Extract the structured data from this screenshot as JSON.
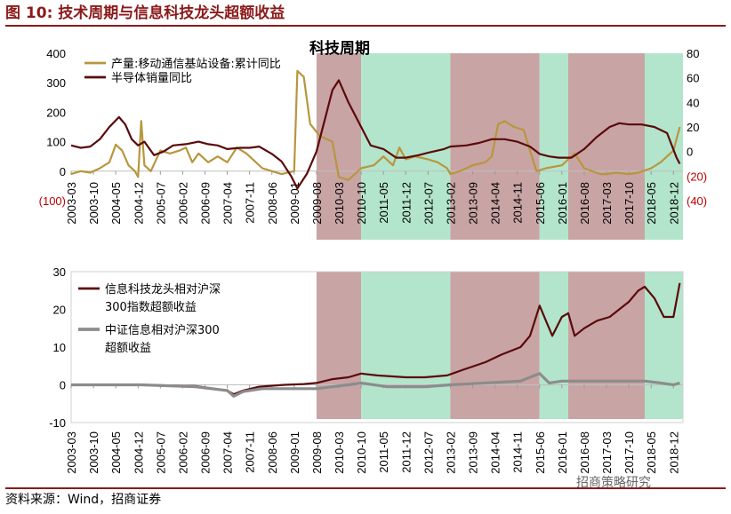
{
  "figure_title": "图 10:  技术周期与信息科技龙头超额收益",
  "source": "资料来源：Wind，招商证券",
  "watermark": "招商策略研究",
  "colors": {
    "title": "#8B1A1A",
    "production": "#B8963E",
    "semi": "#5A0A0A",
    "leader": "#5A0A0A",
    "index": "#8C8C8C",
    "red_shade": "#C9A4A4",
    "green_shade": "#B3E5CC"
  },
  "chart_data": [
    {
      "type": "line",
      "title": "科技周期",
      "x_tick_labels": [
        "2003-03",
        "2003-10",
        "2004-05",
        "2004-12",
        "2005-07",
        "2006-02",
        "2006-09",
        "2007-04",
        "2007-11",
        "2008-06",
        "2009-01",
        "2009-08",
        "2010-03",
        "2010-10",
        "2011-05",
        "2011-12",
        "2012-07",
        "2013-02",
        "2013-09",
        "2014-04",
        "2014-11",
        "2015-06",
        "2016-01",
        "2016-08",
        "2017-03",
        "2017-10",
        "2018-05",
        "2018-12"
      ],
      "x_range": [
        "2003-03",
        "2019-03"
      ],
      "y_left": {
        "range": [
          -100,
          400
        ],
        "tick_labels": [
          "(100)",
          "0",
          "100",
          "200",
          "300",
          "400"
        ],
        "ticks": [
          -100,
          0,
          100,
          200,
          300,
          400
        ]
      },
      "y_right": {
        "range": [
          -40,
          80
        ],
        "tick_labels": [
          "(40)",
          "(20)",
          "0",
          "20",
          "40",
          "60",
          "80"
        ],
        "ticks": [
          -40,
          -20,
          0,
          20,
          40,
          60,
          80
        ]
      },
      "shaded_periods": [
        {
          "start": "2009-08",
          "end": "2010-10",
          "phase": "red"
        },
        {
          "start": "2010-10",
          "end": "2013-02",
          "phase": "green"
        },
        {
          "start": "2013-02",
          "end": "2015-06",
          "phase": "red"
        },
        {
          "start": "2015-06",
          "end": "2016-03",
          "phase": "green"
        },
        {
          "start": "2016-03",
          "end": "2018-03",
          "phase": "red"
        },
        {
          "start": "2018-03",
          "end": "2019-03",
          "phase": "green"
        }
      ],
      "series": [
        {
          "name": "产量:移动通信基站设备:累计同比",
          "axis": "left",
          "color_key": "production",
          "points": [
            [
              "2003-03",
              -10
            ],
            [
              "2003-06",
              0
            ],
            [
              "2003-09",
              -5
            ],
            [
              "2003-12",
              10
            ],
            [
              "2004-03",
              30
            ],
            [
              "2004-05",
              90
            ],
            [
              "2004-07",
              70
            ],
            [
              "2004-09",
              20
            ],
            [
              "2004-11",
              0
            ],
            [
              "2004-12",
              -20
            ],
            [
              "2005-01",
              170
            ],
            [
              "2005-02",
              20
            ],
            [
              "2005-04",
              0
            ],
            [
              "2005-07",
              70
            ],
            [
              "2005-10",
              60
            ],
            [
              "2006-01",
              70
            ],
            [
              "2006-03",
              80
            ],
            [
              "2006-05",
              30
            ],
            [
              "2006-07",
              60
            ],
            [
              "2006-10",
              30
            ],
            [
              "2007-01",
              50
            ],
            [
              "2007-04",
              30
            ],
            [
              "2007-07",
              80
            ],
            [
              "2007-10",
              60
            ],
            [
              "2008-01",
              30
            ],
            [
              "2008-03",
              10
            ],
            [
              "2008-06",
              0
            ],
            [
              "2008-09",
              -10
            ],
            [
              "2009-01",
              0
            ],
            [
              "2009-02",
              340
            ],
            [
              "2009-04",
              320
            ],
            [
              "2009-06",
              160
            ],
            [
              "2009-09",
              120
            ],
            [
              "2010-01",
              100
            ],
            [
              "2010-03",
              -20
            ],
            [
              "2010-06",
              -30
            ],
            [
              "2010-10",
              10
            ],
            [
              "2011-02",
              20
            ],
            [
              "2011-05",
              50
            ],
            [
              "2011-08",
              20
            ],
            [
              "2011-10",
              80
            ],
            [
              "2011-12",
              40
            ],
            [
              "2012-03",
              50
            ],
            [
              "2012-07",
              40
            ],
            [
              "2012-10",
              30
            ],
            [
              "2013-01",
              10
            ],
            [
              "2013-02",
              -10
            ],
            [
              "2013-05",
              0
            ],
            [
              "2013-09",
              20
            ],
            [
              "2014-01",
              30
            ],
            [
              "2014-03",
              50
            ],
            [
              "2014-05",
              160
            ],
            [
              "2014-07",
              170
            ],
            [
              "2014-10",
              150
            ],
            [
              "2015-01",
              140
            ],
            [
              "2015-03",
              70
            ],
            [
              "2015-05",
              0
            ],
            [
              "2015-08",
              10
            ],
            [
              "2016-01",
              20
            ],
            [
              "2016-05",
              60
            ],
            [
              "2016-08",
              10
            ],
            [
              "2017-01",
              -10
            ],
            [
              "2017-03",
              -10
            ],
            [
              "2017-06",
              -5
            ],
            [
              "2017-10",
              -10
            ],
            [
              "2018-01",
              -5
            ],
            [
              "2018-05",
              10
            ],
            [
              "2018-08",
              30
            ],
            [
              "2018-12",
              70
            ],
            [
              "2019-02",
              150
            ]
          ]
        },
        {
          "name": "半导体销量同比",
          "axis": "right",
          "color_key": "semi",
          "points": [
            [
              "2003-03",
              5
            ],
            [
              "2003-06",
              3
            ],
            [
              "2003-09",
              4
            ],
            [
              "2003-12",
              10
            ],
            [
              "2004-03",
              20
            ],
            [
              "2004-06",
              28
            ],
            [
              "2004-08",
              22
            ],
            [
              "2004-10",
              10
            ],
            [
              "2004-12",
              5
            ],
            [
              "2005-02",
              8
            ],
            [
              "2005-05",
              -3
            ],
            [
              "2005-08",
              0
            ],
            [
              "2005-11",
              5
            ],
            [
              "2006-03",
              6
            ],
            [
              "2006-07",
              8
            ],
            [
              "2006-10",
              6
            ],
            [
              "2007-01",
              5
            ],
            [
              "2007-04",
              2
            ],
            [
              "2007-08",
              3
            ],
            [
              "2007-11",
              3
            ],
            [
              "2008-02",
              4
            ],
            [
              "2008-06",
              -2
            ],
            [
              "2008-09",
              -8
            ],
            [
              "2008-12",
              -20
            ],
            [
              "2009-02",
              -30
            ],
            [
              "2009-05",
              -18
            ],
            [
              "2009-08",
              0
            ],
            [
              "2009-11",
              30
            ],
            [
              "2010-01",
              50
            ],
            [
              "2010-03",
              58
            ],
            [
              "2010-06",
              40
            ],
            [
              "2010-10",
              20
            ],
            [
              "2011-01",
              5
            ],
            [
              "2011-05",
              2
            ],
            [
              "2011-09",
              -5
            ],
            [
              "2011-12",
              -5
            ],
            [
              "2012-04",
              -3
            ],
            [
              "2012-07",
              -1
            ],
            [
              "2012-12",
              2
            ],
            [
              "2013-02",
              4
            ],
            [
              "2013-07",
              5
            ],
            [
              "2013-11",
              7
            ],
            [
              "2014-03",
              10
            ],
            [
              "2014-07",
              10
            ],
            [
              "2014-11",
              8
            ],
            [
              "2015-03",
              4
            ],
            [
              "2015-06",
              -2
            ],
            [
              "2015-09",
              -4
            ],
            [
              "2015-12",
              -5
            ],
            [
              "2016-04",
              -5
            ],
            [
              "2016-08",
              2
            ],
            [
              "2016-12",
              12
            ],
            [
              "2017-04",
              20
            ],
            [
              "2017-07",
              23
            ],
            [
              "2017-10",
              22
            ],
            [
              "2018-02",
              22
            ],
            [
              "2018-06",
              20
            ],
            [
              "2018-10",
              15
            ],
            [
              "2019-01",
              -5
            ],
            [
              "2019-02",
              -10
            ]
          ]
        }
      ]
    },
    {
      "type": "line",
      "title": "",
      "x_tick_labels": [
        "2003-03",
        "2003-10",
        "2004-05",
        "2004-12",
        "2005-07",
        "2006-02",
        "2006-09",
        "2007-04",
        "2007-11",
        "2008-06",
        "2009-01",
        "2009-08",
        "2010-03",
        "2010-10",
        "2011-05",
        "2011-12",
        "2012-07",
        "2013-02",
        "2013-09",
        "2014-04",
        "2014-11",
        "2015-06",
        "2016-01",
        "2016-08",
        "2017-03",
        "2017-10",
        "2018-05",
        "2018-12"
      ],
      "x_range": [
        "2003-03",
        "2019-03"
      ],
      "y": {
        "range": [
          -10,
          30
        ],
        "tick_labels": [
          "-10",
          "0",
          "10",
          "20",
          "30"
        ],
        "ticks": [
          -10,
          0,
          10,
          20,
          30
        ]
      },
      "shaded_periods": [
        {
          "start": "2009-08",
          "end": "2010-10",
          "phase": "red"
        },
        {
          "start": "2010-10",
          "end": "2013-02",
          "phase": "green"
        },
        {
          "start": "2013-02",
          "end": "2015-06",
          "phase": "red"
        },
        {
          "start": "2015-06",
          "end": "2016-03",
          "phase": "green"
        },
        {
          "start": "2016-03",
          "end": "2018-03",
          "phase": "red"
        },
        {
          "start": "2018-03",
          "end": "2019-03",
          "phase": "green"
        }
      ],
      "series": [
        {
          "name": "信息科技龙头相对沪深300指数超额收益",
          "legend_lines": [
            "信息科技龙头相对沪深",
            "300指数超额收益"
          ],
          "color_key": "leader",
          "points": [
            [
              "2003-03",
              0
            ],
            [
              "2005-01",
              0
            ],
            [
              "2006-06",
              -0.3
            ],
            [
              "2007-04",
              -1.5
            ],
            [
              "2007-06",
              -2.5
            ],
            [
              "2007-09",
              -1.5
            ],
            [
              "2008-02",
              -0.5
            ],
            [
              "2008-10",
              0
            ],
            [
              "2009-04",
              0.2
            ],
            [
              "2009-08",
              0.5
            ],
            [
              "2010-01",
              1.5
            ],
            [
              "2010-06",
              2
            ],
            [
              "2010-10",
              3
            ],
            [
              "2011-03",
              2.5
            ],
            [
              "2011-12",
              2
            ],
            [
              "2012-06",
              2
            ],
            [
              "2013-01",
              2.5
            ],
            [
              "2013-06",
              4
            ],
            [
              "2014-01",
              6
            ],
            [
              "2014-06",
              8
            ],
            [
              "2014-12",
              10
            ],
            [
              "2015-03",
              13
            ],
            [
              "2015-06",
              21
            ],
            [
              "2015-08",
              17
            ],
            [
              "2015-10",
              13
            ],
            [
              "2016-01",
              18
            ],
            [
              "2016-03",
              19
            ],
            [
              "2016-05",
              13
            ],
            [
              "2016-08",
              15
            ],
            [
              "2016-12",
              17
            ],
            [
              "2017-04",
              18
            ],
            [
              "2017-10",
              22
            ],
            [
              "2018-01",
              25
            ],
            [
              "2018-03",
              26
            ],
            [
              "2018-06",
              23
            ],
            [
              "2018-09",
              18
            ],
            [
              "2018-12",
              18
            ],
            [
              "2019-02",
              27
            ]
          ]
        },
        {
          "name": "中证信息相对沪深300超额收益",
          "legend_lines": [
            "中证信息相对沪深300",
            "超额收益"
          ],
          "color_key": "index",
          "points": [
            [
              "2003-03",
              0
            ],
            [
              "2005-01",
              0
            ],
            [
              "2006-06",
              -0.5
            ],
            [
              "2007-04",
              -1.5
            ],
            [
              "2007-06",
              -3
            ],
            [
              "2007-09",
              -1.8
            ],
            [
              "2008-03",
              -1
            ],
            [
              "2009-01",
              -1
            ],
            [
              "2009-08",
              -1
            ],
            [
              "2010-06",
              0
            ],
            [
              "2010-10",
              0.5
            ],
            [
              "2011-06",
              -0.5
            ],
            [
              "2012-06",
              -0.5
            ],
            [
              "2013-02",
              0
            ],
            [
              "2014-01",
              0.5
            ],
            [
              "2014-12",
              1
            ],
            [
              "2015-06",
              3
            ],
            [
              "2015-09",
              0.5
            ],
            [
              "2016-01",
              1
            ],
            [
              "2016-08",
              1
            ],
            [
              "2017-06",
              1
            ],
            [
              "2018-03",
              1
            ],
            [
              "2018-08",
              0.5
            ],
            [
              "2018-12",
              0
            ],
            [
              "2019-02",
              0.5
            ]
          ]
        }
      ]
    }
  ]
}
